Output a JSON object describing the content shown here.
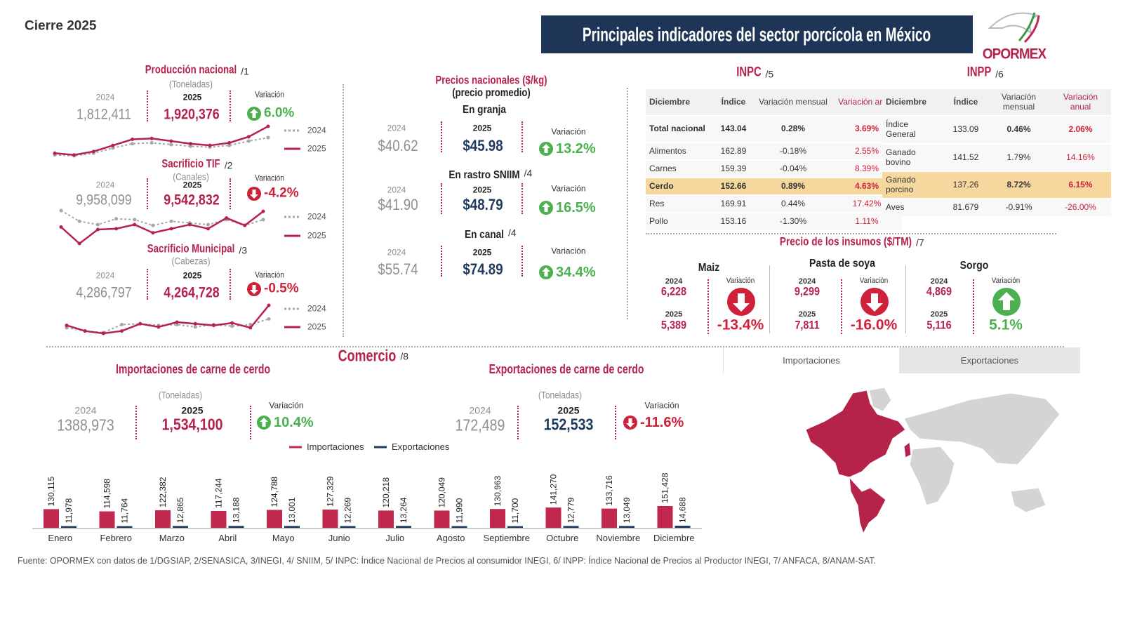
{
  "header": {
    "period": "Cierre 2025",
    "title": "Principales indicadores del sector porcícola en México",
    "logo": "OPORMEX"
  },
  "production": [
    {
      "title": "Producción nacional",
      "ref": "/1",
      "unit": "(Toneladas)",
      "prev_label": "2024",
      "prev": "1,812,411",
      "curr_label": "2025",
      "curr": "1,920,376",
      "variation_label": "Variación",
      "variation": "6.0%",
      "direction": "up",
      "trend": {
        "series": [
          {
            "name": "2024",
            "color": "#a6a6a6",
            "values": [
              14,
              13,
              16,
              22,
              27,
              28,
              26,
              24,
              23,
              25,
              30,
              34
            ]
          },
          {
            "name": "2025",
            "color": "#b5234a",
            "values": [
              16,
              14,
              18,
              25,
              32,
              33,
              30,
              27,
              25,
              28,
              35,
              47
            ]
          }
        ]
      }
    },
    {
      "title": "Sacrificio TIF",
      "ref": "/2",
      "unit": "(Canales)",
      "prev_label": "2024",
      "prev": "9,958,099",
      "curr_label": "2025",
      "curr": "9,542,832",
      "variation_label": "Variación",
      "variation": "-4.2%",
      "direction": "down",
      "trend": {
        "series": [
          {
            "name": "2024",
            "color": "#a6a6a6",
            "values": [
              45,
              32,
              28,
              35,
              34,
              27,
              32,
              30,
              28,
              34,
              27,
              34
            ]
          },
          {
            "name": "2025",
            "color": "#b5234a",
            "values": [
              25,
              5,
              22,
              23,
              28,
              18,
              23,
              28,
              23,
              36,
              27,
              44
            ]
          }
        ]
      }
    },
    {
      "title": "Sacrificio Municipal",
      "ref": "/3",
      "unit": "(Cabezas)",
      "prev_label": "2024",
      "prev": "4,286,797",
      "curr_label": "2025",
      "curr": "4,264,728",
      "variation_label": "Variación",
      "variation": "-0.5%",
      "direction": "down",
      "trend": {
        "series": [
          {
            "name": "2024",
            "color": "#a6a6a6",
            "values": [
              14,
              10,
              8,
              18,
              19,
              17,
              18,
              15,
              18,
              16,
              18,
              25
            ]
          },
          {
            "name": "2025",
            "color": "#b5234a",
            "values": [
              17,
              10,
              7,
              10,
              19,
              15,
              21,
              19,
              17,
              20,
              14,
              42
            ]
          }
        ]
      }
    }
  ],
  "prices": {
    "title": "Precios nacionales ($/kg)",
    "subtitle": "(precio promedio)",
    "rows": [
      {
        "name": "En granja",
        "prev_label": "2024",
        "prev": "$40.62",
        "curr_label": "2025",
        "curr": "$45.98",
        "variation_label": "Variación",
        "variation": "13.2%",
        "direction": "up"
      },
      {
        "name": "En rastro SNIIM",
        "ref": "/4",
        "prev_label": "2024",
        "prev": "$41.90",
        "curr_label": "2025",
        "curr": "$48.79",
        "variation_label": "Variación",
        "variation": "16.5%",
        "direction": "up"
      },
      {
        "name": "En canal",
        "ref": "/4",
        "prev_label": "2024",
        "prev": "$55.74",
        "curr_label": "2025",
        "curr": "$74.89",
        "variation_label": "Variación",
        "variation": "34.4%",
        "direction": "up"
      }
    ]
  },
  "inpc": {
    "title": "INPC",
    "ref": "/5",
    "columns": [
      "Diciembre",
      "Índice",
      "Variación mensual",
      "Variación anual"
    ],
    "rows": [
      [
        "Total nacional",
        "143.04",
        "0.28%",
        "3.69%"
      ],
      [
        "Alimentos",
        "162.89",
        "-0.18%",
        "2.55%"
      ],
      [
        "Carnes",
        "159.39",
        "-0.04%",
        "8.39%"
      ],
      [
        "Cerdo",
        "152.66",
        "0.89%",
        "4.63%"
      ],
      [
        "Res",
        "169.91",
        "0.44%",
        "17.42%"
      ],
      [
        "Pollo",
        "153.16",
        "-1.30%",
        "1.11%"
      ]
    ],
    "highlight_row": 3
  },
  "inpp": {
    "title": "INPP",
    "ref": "/6",
    "columns": [
      "Diciembre",
      "Índice",
      "Variación mensual",
      "Variación anual"
    ],
    "rows": [
      [
        "Índice General",
        "133.09",
        "0.46%",
        "2.06%"
      ],
      [
        "Ganado bovino",
        "141.52",
        "1.79%",
        "14.16%"
      ],
      [
        "Ganado porcino",
        "137.26",
        "8.72%",
        "6.15%"
      ],
      [
        "Aves",
        "81.679",
        "-0.91%",
        "-26.00%"
      ]
    ],
    "highlight_row": 2
  },
  "inputs": {
    "title": "Precio de los insumos ($/TM)",
    "ref": "/7",
    "items": [
      {
        "name": "Maiz",
        "prev_label": "2024",
        "prev": "6,228",
        "curr_label": "2025",
        "curr": "5,389",
        "variation_label": "Variación",
        "variation": "-13.4%",
        "direction": "down"
      },
      {
        "name": "Pasta de soya",
        "prev_label": "2024",
        "prev": "9,299",
        "curr_label": "2025",
        "curr": "7,811",
        "variation_label": "Variación",
        "variation": "-16.0%",
        "direction": "down"
      },
      {
        "name": "Sorgo",
        "prev_label": "2024",
        "prev": "4,869",
        "curr_label": "2025",
        "curr": "5,116",
        "variation_label": "Variación",
        "variation": "5.1%",
        "direction": "up"
      }
    ]
  },
  "trade": {
    "title": "Comercio",
    "ref": "/8",
    "imports": {
      "title": "Importaciones de carne de cerdo",
      "unit": "(Toneladas)",
      "prev_label": "2024",
      "prev": "1388,973",
      "curr_label": "2025",
      "curr": "1,534,100",
      "variation_label": "Variación",
      "variation": "10.4%",
      "direction": "up"
    },
    "exports": {
      "title": "Exportaciones de carne de cerdo",
      "unit": "(Toneladas)",
      "prev_label": "2024",
      "prev": "172,489",
      "curr_label": "2025",
      "curr": "152,533",
      "variation_label": "Variación",
      "variation": "-11.6%",
      "direction": "down"
    },
    "chart": {
      "type": "bar",
      "categories": [
        "Enero",
        "Febrero",
        "Marzo",
        "Abril",
        "Mayo",
        "Junio",
        "Julio",
        "Agosto",
        "Septiembre",
        "Octubre",
        "Noviembre",
        "Diciembre"
      ],
      "series": [
        {
          "name": "Importaciones",
          "color": "#c0284e",
          "values": [
            130115,
            114598,
            122382,
            117244,
            124788,
            127329,
            120218,
            120049,
            130963,
            141270,
            133716,
            151428
          ],
          "value_labels": [
            "130,115",
            "114,598",
            "122,382",
            "117,244",
            "124,788",
            "127,329",
            "120,218",
            "120,049",
            "130,963",
            "141,270",
            "133,716",
            "151,428"
          ]
        },
        {
          "name": "Exportaciones",
          "color": "#1f3a5f",
          "values": [
            11978,
            11764,
            12865,
            13188,
            13001,
            12269,
            13264,
            11990,
            11700,
            12779,
            13049,
            14688
          ],
          "value_labels": [
            "11,978",
            "11,764",
            "12,865",
            "13,188",
            "13,001",
            "12,269",
            "13,264",
            "11,990",
            "11,700",
            "12,779",
            "13,049",
            "14,688"
          ]
        }
      ]
    }
  },
  "map": {
    "tabs": [
      "Importaciones",
      "Exportaciones"
    ]
  },
  "source": "Fuente: OPORMEX con datos de 1/DGSIAP, 2/SENASICA, 3/INEGI, 4/ SNIIM, 5/ INPC: Índice Nacional de Precios al consumidor INEGI, 6/ INPP: Índice Nacional de Precios al Productor INEGI, 7/ ANFACA, 8/ANAM-SAT."
}
